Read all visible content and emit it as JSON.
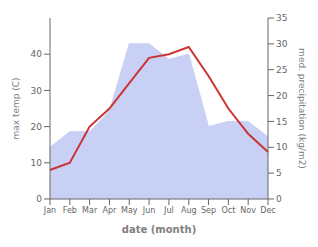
{
  "chart_data": {
    "type": "line",
    "xlabel": "date (month)",
    "ylabel": "max temp (C)",
    "y2label": "med. precipitation (kg/m2)",
    "categories": [
      "Jan",
      "Feb",
      "Mar",
      "Apr",
      "May",
      "Jun",
      "Jul",
      "Aug",
      "Sep",
      "Oct",
      "Nov",
      "Dec"
    ],
    "series": [
      {
        "type": "area",
        "axis": "y2",
        "color": "#c8d0f5",
        "values": [
          10,
          13,
          13,
          17,
          30,
          30,
          27,
          28,
          14,
          15,
          15,
          12
        ]
      },
      {
        "type": "line",
        "axis": "y",
        "color": "#cc3333",
        "values": [
          8,
          10,
          20,
          25,
          32,
          39,
          40,
          42,
          34,
          25,
          18,
          13
        ]
      }
    ],
    "ylim": [
      0,
      50
    ],
    "yticks": [
      0,
      10,
      20,
      30,
      40
    ],
    "y2lim": [
      0,
      35
    ],
    "y2ticks": [
      0,
      5,
      10,
      15,
      20,
      25,
      30,
      35
    ],
    "grid": false
  }
}
